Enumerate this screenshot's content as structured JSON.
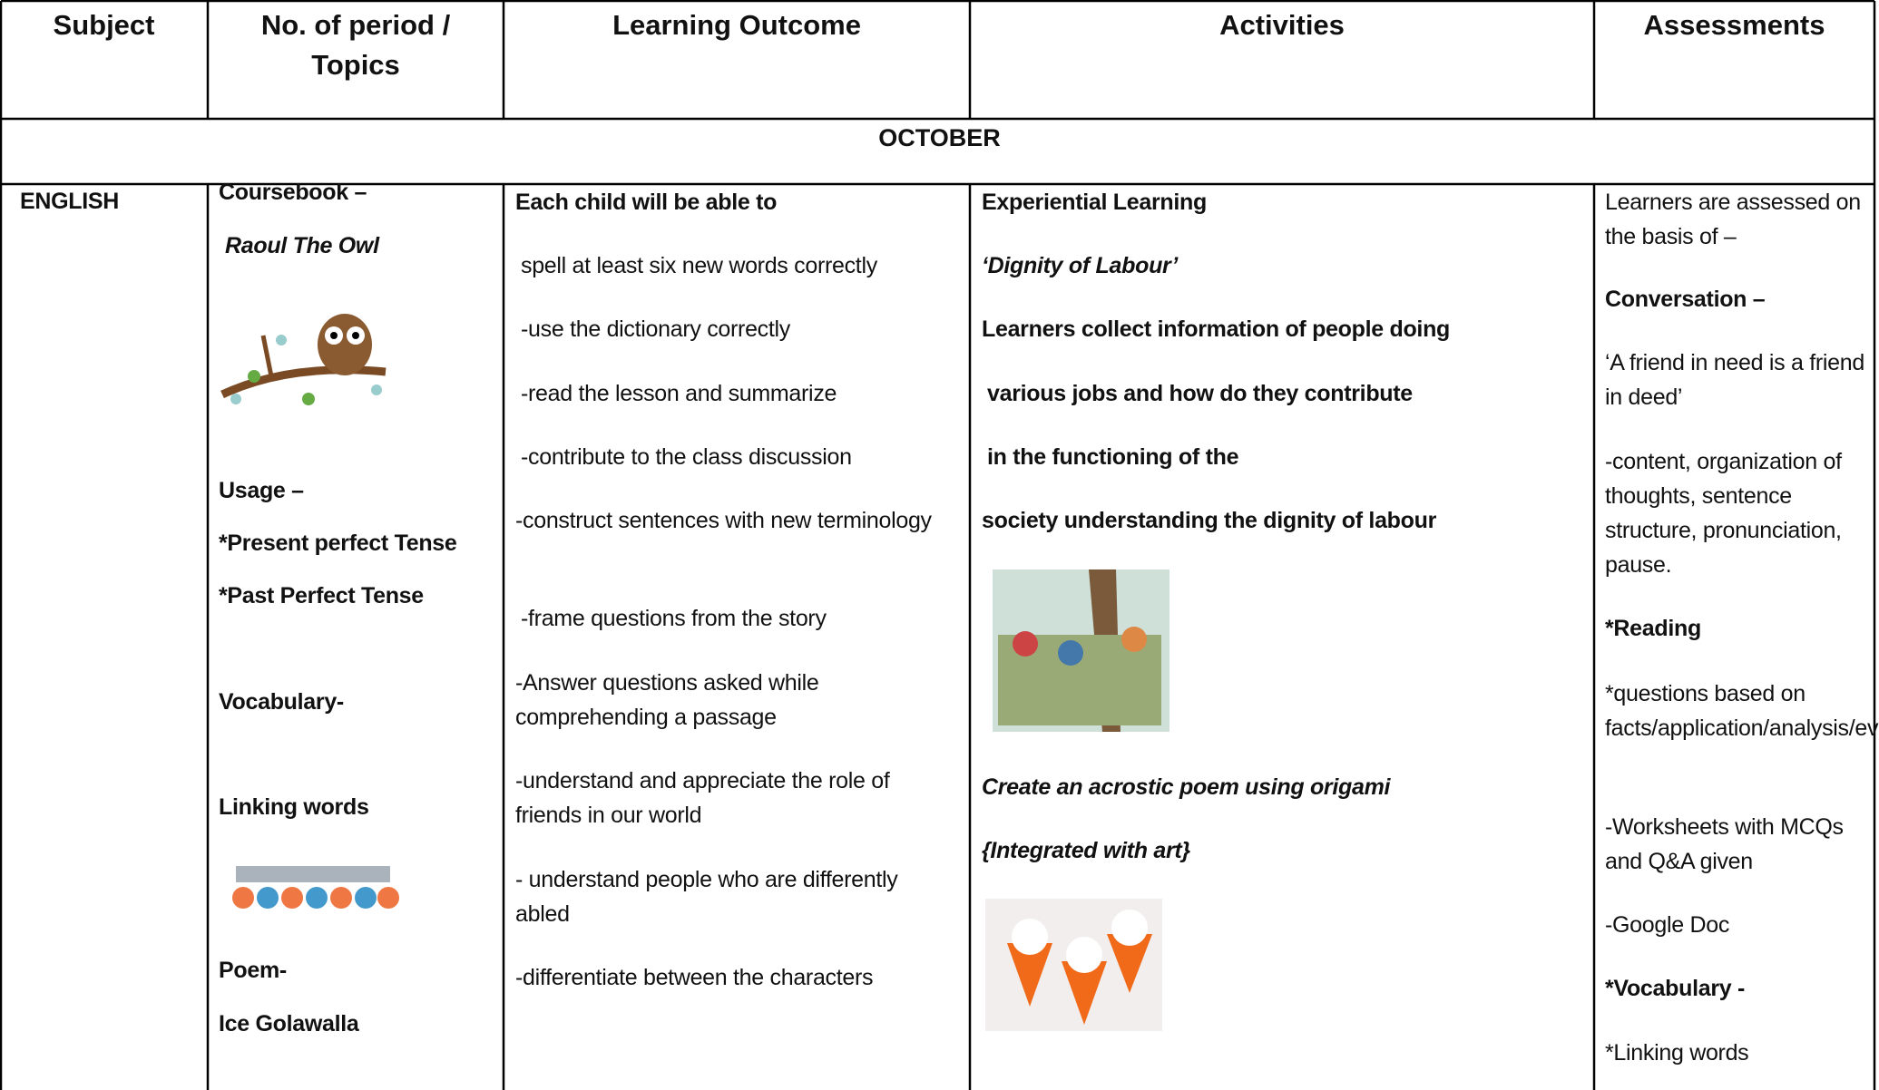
{
  "header": [
    "Subject",
    "No. of period / Topics",
    "Learning Outcome",
    "Activities",
    "Assessments"
  ],
  "month": "OCTOBER",
  "subject": "ENGLISH",
  "topics": [
    "Coursebook –",
    "Raoul The Owl",
    "Usage –",
    "*Present perfect Tense",
    "*Past Perfect Tense",
    "Vocabulary-",
    "Linking words",
    "Poem-",
    "Ice Golawalla"
  ],
  "outcomes": [
    "Each child will be able to",
    "spell at least six new words correctly",
    "-use the dictionary correctly",
    "-read the lesson  and summarize",
    "-contribute  to the class discussion",
    "-construct sentences with new terminology",
    "-frame  questions from the story",
    "-Answer questions asked  while comprehending  a passage",
    "-understand and appreciate the role of friends in our world",
    "- understand people who are differently abled",
    "-differentiate between the  characters"
  ],
  "activities": [
    "Experiential Learning",
    "‘Dignity of Labour’",
    "Learners collect information of people doing",
    "various jobs and how do they contribute",
    "in the functioning of the",
    "society understanding the dignity of labour",
    "Create an acrostic poem using origami",
    "{Integrated with art}"
  ],
  "assessments": [
    "Learners are assessed on the basis of –",
    "Conversation –",
    "‘A friend in need is a friend in deed’",
    "-content, organization of thoughts, sentence structure, pronunciation, pause.",
    "*Reading",
    "*questions based on facts/application/analysis/evaluation/creativity",
    "-Worksheets with MCQs and Q&A given",
    "-Google Doc",
    "*Vocabulary -",
    "*Linking words"
  ]
}
